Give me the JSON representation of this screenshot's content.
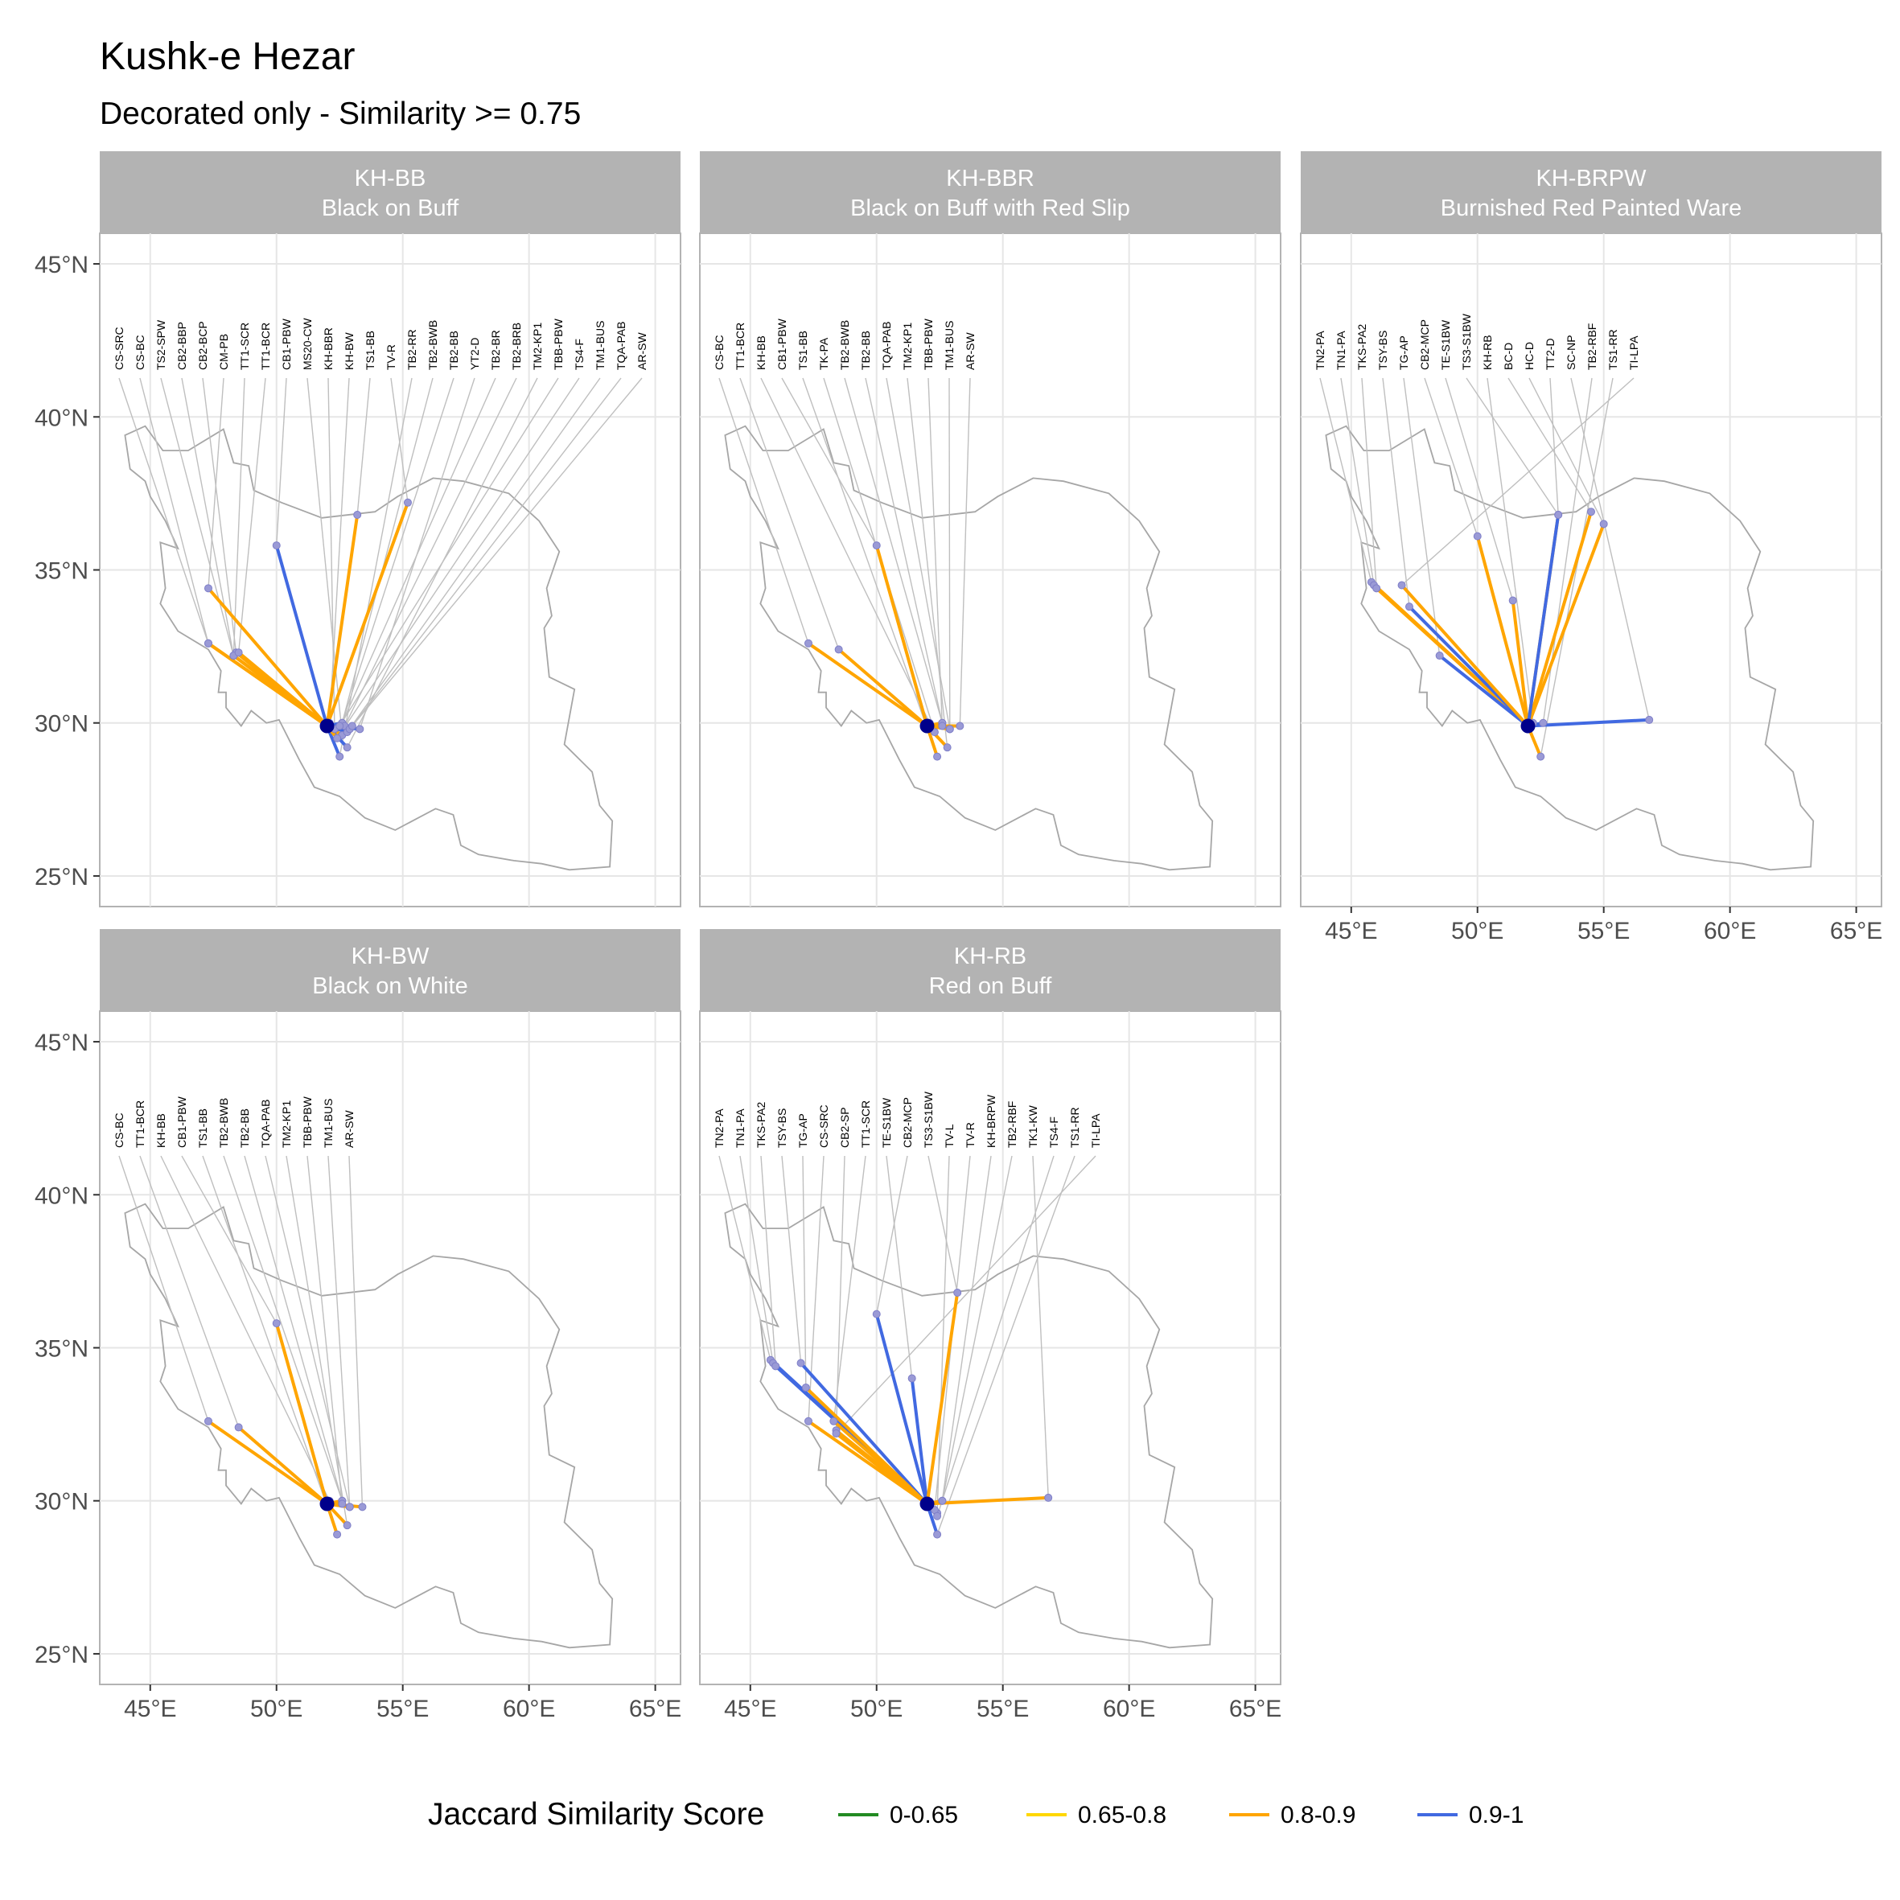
{
  "chart_data": {
    "type": "map",
    "title": "Kushk-e Hezar",
    "subtitle": "Decorated only - Similarity >= 0.75",
    "xlim": [
      43,
      66
    ],
    "ylim": [
      24,
      46
    ],
    "x_ticks": [
      {
        "value": 45,
        "label": "45°E"
      },
      {
        "value": 50,
        "label": "50°E"
      },
      {
        "value": 55,
        "label": "55°E"
      },
      {
        "value": 60,
        "label": "60°E"
      },
      {
        "value": 65,
        "label": "65°E"
      }
    ],
    "y_ticks": [
      {
        "value": 25,
        "label": "25°N"
      },
      {
        "value": 30,
        "label": "30°N"
      },
      {
        "value": 35,
        "label": "35°N"
      },
      {
        "value": 40,
        "label": "40°N"
      },
      {
        "value": 45,
        "label": "45°N"
      }
    ],
    "grid": true,
    "legend": {
      "title": "Jaccard Similarity Score",
      "position": "bottom",
      "items": [
        {
          "label": "0-0.65",
          "color": "#228B22"
        },
        {
          "label": "0.65-0.8",
          "color": "#FFD700"
        },
        {
          "label": "0.8-0.9",
          "color": "#FFA500"
        },
        {
          "label": "0.9-1",
          "color": "#4169E1"
        }
      ]
    },
    "origin": {
      "lon": 52.0,
      "lat": 29.9
    },
    "panels": [
      {
        "title": "KH-BB",
        "subtitle": "Black on Buff",
        "sites": [
          {
            "label": "CS-SRC",
            "lon": 47.3,
            "lat": 32.6,
            "cls": "0.8-0.9"
          },
          {
            "label": "CS-BC",
            "lon": 47.3,
            "lat": 32.6,
            "cls": "0.8-0.9"
          },
          {
            "label": "TS2-SPW",
            "lon": 48.3,
            "lat": 32.2,
            "cls": "0.8-0.9"
          },
          {
            "label": "CB2-BBP",
            "lon": 48.3,
            "lat": 32.2,
            "cls": "0.8-0.9"
          },
          {
            "label": "CB2-BCP",
            "lon": 48.4,
            "lat": 32.3,
            "cls": "0.8-0.9"
          },
          {
            "label": "CM-PB",
            "lon": 47.3,
            "lat": 34.4,
            "cls": "0.8-0.9"
          },
          {
            "label": "TT1-SCR",
            "lon": 48.3,
            "lat": 32.2,
            "cls": "0.8-0.9"
          },
          {
            "label": "TT1-BCR",
            "lon": 48.5,
            "lat": 32.3,
            "cls": "0.8-0.9"
          },
          {
            "label": "CB1-PBW",
            "lon": 50.0,
            "lat": 35.8,
            "cls": "0.9-1"
          },
          {
            "label": "MS20-CW",
            "lon": 52.6,
            "lat": 29.6,
            "cls": "0.8-0.9"
          },
          {
            "label": "KH-BBR",
            "lon": 52.3,
            "lat": 29.8,
            "cls": "0.9-1"
          },
          {
            "label": "KH-BW",
            "lon": 52.1,
            "lat": 30.0,
            "cls": "0.9-1"
          },
          {
            "label": "TS1-BB",
            "lon": 53.2,
            "lat": 36.8,
            "cls": "0.8-0.9"
          },
          {
            "label": "TV-R",
            "lon": 55.2,
            "lat": 37.2,
            "cls": "0.8-0.9"
          },
          {
            "label": "TB2-RR",
            "lon": 52.5,
            "lat": 28.9,
            "cls": "0.9-1"
          },
          {
            "label": "TB2-BWB",
            "lon": 52.6,
            "lat": 30.0,
            "cls": "0.8-0.9"
          },
          {
            "label": "TB2-BB",
            "lon": 52.6,
            "lat": 30.0,
            "cls": "0.9-1"
          },
          {
            "label": "YT2-D",
            "lon": 53.3,
            "lat": 29.8,
            "cls": "0.9-1"
          },
          {
            "label": "TB2-BR",
            "lon": 52.6,
            "lat": 30.0,
            "cls": "0.9-1"
          },
          {
            "label": "TB2-BRB",
            "lon": 52.7,
            "lat": 29.9,
            "cls": "0.8-0.9"
          },
          {
            "label": "TM2-KP1",
            "lon": 52.8,
            "lat": 29.2,
            "cls": "0.9-1"
          },
          {
            "label": "TBB-PBW",
            "lon": 52.5,
            "lat": 29.9,
            "cls": "0.8-0.9"
          },
          {
            "label": "TS4-F",
            "lon": 52.4,
            "lat": 29.5,
            "cls": "0.8-0.9"
          },
          {
            "label": "TM1-BUS",
            "lon": 52.8,
            "lat": 29.7,
            "cls": "0.9-1"
          },
          {
            "label": "TQA-PAB",
            "lon": 52.9,
            "lat": 29.8,
            "cls": "0.9-1"
          },
          {
            "label": "AR-SW",
            "lon": 53.0,
            "lat": 29.9,
            "cls": "0.9-1"
          }
        ]
      },
      {
        "title": "KH-BBR",
        "subtitle": "Black on Buff with Red Slip",
        "sites": [
          {
            "label": "CS-BC",
            "lon": 47.3,
            "lat": 32.6,
            "cls": "0.8-0.9"
          },
          {
            "label": "TT1-BCR",
            "lon": 48.5,
            "lat": 32.4,
            "cls": "0.8-0.9"
          },
          {
            "label": "KH-BB",
            "lon": 52.1,
            "lat": 30.0,
            "cls": "0.9-1"
          },
          {
            "label": "CB1-PBW",
            "lon": 50.0,
            "lat": 35.8,
            "cls": "0.8-0.9"
          },
          {
            "label": "TS1-BB",
            "lon": 52.4,
            "lat": 28.9,
            "cls": "0.8-0.9"
          },
          {
            "label": "TK-PA",
            "lon": 52.3,
            "lat": 29.7,
            "cls": "0.8-0.9"
          },
          {
            "label": "TB2-BWB",
            "lon": 52.6,
            "lat": 30.0,
            "cls": "0.8-0.9"
          },
          {
            "label": "TB2-BB",
            "lon": 52.6,
            "lat": 30.0,
            "cls": "0.8-0.9"
          },
          {
            "label": "TQA-PAB",
            "lon": 52.9,
            "lat": 29.8,
            "cls": "0.8-0.9"
          },
          {
            "label": "TM2-KP1",
            "lon": 52.8,
            "lat": 29.2,
            "cls": "0.8-0.9"
          },
          {
            "label": "TBB-PBW",
            "lon": 52.6,
            "lat": 29.9,
            "cls": "0.8-0.9"
          },
          {
            "label": "TM1-BUS",
            "lon": 52.9,
            "lat": 29.8,
            "cls": "0.8-0.9"
          },
          {
            "label": "AR-SW",
            "lon": 53.3,
            "lat": 29.9,
            "cls": "0.8-0.9"
          }
        ]
      },
      {
        "title": "KH-BRPW",
        "subtitle": "Burnished Red Painted Ware",
        "sites": [
          {
            "label": "TN2-PA",
            "lon": 45.8,
            "lat": 34.6,
            "cls": "0.8-0.9"
          },
          {
            "label": "TN1-PA",
            "lon": 45.9,
            "lat": 34.5,
            "cls": "0.8-0.9"
          },
          {
            "label": "TKS-PA2",
            "lon": 46.0,
            "lat": 34.4,
            "cls": "0.8-0.9"
          },
          {
            "label": "TSY-BS",
            "lon": 47.3,
            "lat": 33.8,
            "cls": "0.9-1"
          },
          {
            "label": "TG-AP",
            "lon": 48.5,
            "lat": 32.2,
            "cls": "0.9-1"
          },
          {
            "label": "CB2-MCP",
            "lon": 50.0,
            "lat": 36.1,
            "cls": "0.8-0.9"
          },
          {
            "label": "TE-S1BW",
            "lon": 51.4,
            "lat": 34.0,
            "cls": "0.8-0.9"
          },
          {
            "label": "TS3-S1BW",
            "lon": 53.2,
            "lat": 36.8,
            "cls": "0.8-0.9"
          },
          {
            "label": "KH-RB",
            "lon": 52.2,
            "lat": 30.0,
            "cls": "0.9-1"
          },
          {
            "label": "BC-D",
            "lon": 54.5,
            "lat": 36.9,
            "cls": "0.8-0.9"
          },
          {
            "label": "HC-D",
            "lon": 55.0,
            "lat": 36.5,
            "cls": "0.8-0.9"
          },
          {
            "label": "TT2-D",
            "lon": 53.2,
            "lat": 36.8,
            "cls": "0.9-1"
          },
          {
            "label": "SC-NP",
            "lon": 56.8,
            "lat": 30.1,
            "cls": "0.9-1"
          },
          {
            "label": "TB2-RBF",
            "lon": 52.6,
            "lat": 30.0,
            "cls": "0.9-1"
          },
          {
            "label": "TS1-RR",
            "lon": 52.5,
            "lat": 28.9,
            "cls": "0.8-0.9"
          },
          {
            "label": "TI-LPA",
            "lon": 47.0,
            "lat": 34.5,
            "cls": "0.8-0.9"
          }
        ]
      },
      {
        "title": "KH-BW",
        "subtitle": "Black on White",
        "sites": [
          {
            "label": "CS-BC",
            "lon": 47.3,
            "lat": 32.6,
            "cls": "0.8-0.9"
          },
          {
            "label": "TT1-BCR",
            "lon": 48.5,
            "lat": 32.4,
            "cls": "0.8-0.9"
          },
          {
            "label": "KH-BB",
            "lon": 52.1,
            "lat": 30.0,
            "cls": "0.8-0.9"
          },
          {
            "label": "CB1-PBW",
            "lon": 50.0,
            "lat": 35.8,
            "cls": "0.8-0.9"
          },
          {
            "label": "TS1-BB",
            "lon": 52.4,
            "lat": 28.9,
            "cls": "0.8-0.9"
          },
          {
            "label": "TB2-BWB",
            "lon": 52.6,
            "lat": 30.0,
            "cls": "0.8-0.9"
          },
          {
            "label": "TB2-BB",
            "lon": 52.6,
            "lat": 30.0,
            "cls": "0.8-0.9"
          },
          {
            "label": "TQA-PAB",
            "lon": 52.9,
            "lat": 29.8,
            "cls": "0.8-0.9"
          },
          {
            "label": "TM2-KP1",
            "lon": 52.8,
            "lat": 29.2,
            "cls": "0.8-0.9"
          },
          {
            "label": "TBB-PBW",
            "lon": 52.6,
            "lat": 29.9,
            "cls": "0.8-0.9"
          },
          {
            "label": "TM1-BUS",
            "lon": 52.9,
            "lat": 29.8,
            "cls": "0.8-0.9"
          },
          {
            "label": "AR-SW",
            "lon": 53.4,
            "lat": 29.8,
            "cls": "0.8-0.9"
          }
        ]
      },
      {
        "title": "KH-RB",
        "subtitle": "Red on Buff",
        "sites": [
          {
            "label": "TN2-PA",
            "lon": 45.8,
            "lat": 34.6,
            "cls": "0.9-1"
          },
          {
            "label": "TN1-PA",
            "lon": 45.9,
            "lat": 34.5,
            "cls": "0.9-1"
          },
          {
            "label": "TKS-PA2",
            "lon": 46.0,
            "lat": 34.4,
            "cls": "0.9-1"
          },
          {
            "label": "TSY-BS",
            "lon": 47.0,
            "lat": 34.5,
            "cls": "0.9-1"
          },
          {
            "label": "TG-AP",
            "lon": 47.2,
            "lat": 33.7,
            "cls": "0.8-0.9"
          },
          {
            "label": "CS-SRC",
            "lon": 47.3,
            "lat": 32.6,
            "cls": "0.8-0.9"
          },
          {
            "label": "CB2-SP",
            "lon": 48.4,
            "lat": 32.3,
            "cls": "0.8-0.9"
          },
          {
            "label": "TT1-SCR",
            "lon": 48.3,
            "lat": 32.6,
            "cls": "0.8-0.9"
          },
          {
            "label": "TE-S1BW",
            "lon": 51.4,
            "lat": 34.0,
            "cls": "0.9-1"
          },
          {
            "label": "CB2-MCP",
            "lon": 50.0,
            "lat": 36.1,
            "cls": "0.9-1"
          },
          {
            "label": "TS3-S1BW",
            "lon": 53.2,
            "lat": 36.8,
            "cls": "0.8-0.9"
          },
          {
            "label": "TV-L",
            "lon": 52.4,
            "lat": 29.6,
            "cls": "0.8-0.9"
          },
          {
            "label": "TV-R",
            "lon": 52.3,
            "lat": 29.7,
            "cls": "0.8-0.9"
          },
          {
            "label": "KH-BRPW",
            "lon": 52.6,
            "lat": 30.0,
            "cls": "0.9-1"
          },
          {
            "label": "TB2-RBF",
            "lon": 52.6,
            "lat": 30.0,
            "cls": "0.8-0.9"
          },
          {
            "label": "TK1-KW",
            "lon": 56.8,
            "lat": 30.1,
            "cls": "0.8-0.9"
          },
          {
            "label": "TS4-F",
            "lon": 52.4,
            "lat": 29.5,
            "cls": "0.8-0.9"
          },
          {
            "label": "TS1-RR",
            "lon": 52.4,
            "lat": 28.9,
            "cls": "0.9-1"
          },
          {
            "label": "TI-LPA",
            "lon": 48.4,
            "lat": 32.2,
            "cls": "0.8-0.9"
          }
        ]
      }
    ]
  }
}
